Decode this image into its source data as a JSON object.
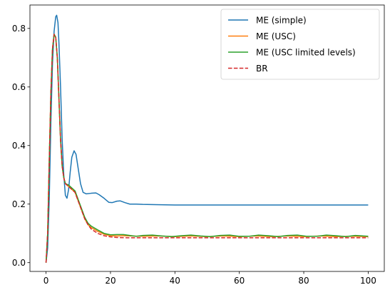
{
  "chart_data": {
    "type": "line",
    "title": "",
    "xlabel": "",
    "ylabel": "",
    "xlim": [
      -5,
      105
    ],
    "ylim": [
      -0.03,
      0.88
    ],
    "xticks": [
      0,
      20,
      40,
      60,
      80,
      100
    ],
    "xtick_labels": [
      "0",
      "20",
      "40",
      "60",
      "80",
      "100"
    ],
    "yticks": [
      0.0,
      0.2,
      0.4,
      0.6,
      0.8
    ],
    "ytick_labels": [
      "0.0",
      "0.2",
      "0.4",
      "0.6",
      "0.8"
    ],
    "grid": false,
    "legend_position": "top-right",
    "series": [
      {
        "name": "ME (simple)",
        "color": "#1f77b4",
        "dash": "solid",
        "points": [
          [
            0,
            0.0
          ],
          [
            0.5,
            0.05
          ],
          [
            1,
            0.22
          ],
          [
            1.5,
            0.48
          ],
          [
            2,
            0.68
          ],
          [
            2.5,
            0.79
          ],
          [
            3,
            0.84
          ],
          [
            3.3,
            0.845
          ],
          [
            3.7,
            0.82
          ],
          [
            4,
            0.75
          ],
          [
            4.5,
            0.6
          ],
          [
            5,
            0.42
          ],
          [
            5.5,
            0.3
          ],
          [
            6,
            0.23
          ],
          [
            6.5,
            0.22
          ],
          [
            7,
            0.25
          ],
          [
            7.5,
            0.31
          ],
          [
            8,
            0.36
          ],
          [
            8.7,
            0.382
          ],
          [
            9.3,
            0.37
          ],
          [
            10,
            0.32
          ],
          [
            10.7,
            0.27
          ],
          [
            11.5,
            0.24
          ],
          [
            12.5,
            0.235
          ],
          [
            14,
            0.237
          ],
          [
            15.5,
            0.238
          ],
          [
            16.5,
            0.232
          ],
          [
            18,
            0.22
          ],
          [
            19.5,
            0.206
          ],
          [
            20.5,
            0.205
          ],
          [
            22,
            0.21
          ],
          [
            23,
            0.211
          ],
          [
            24.5,
            0.205
          ],
          [
            26,
            0.2
          ],
          [
            28,
            0.2
          ],
          [
            30,
            0.199
          ],
          [
            34,
            0.198
          ],
          [
            40,
            0.197
          ],
          [
            60,
            0.197
          ],
          [
            80,
            0.197
          ],
          [
            100,
            0.197
          ]
        ]
      },
      {
        "name": "ME (USC)",
        "color": "#ff7f0e",
        "dash": "solid",
        "points": [
          [
            0,
            0.0
          ],
          [
            0.5,
            0.1
          ],
          [
            1,
            0.35
          ],
          [
            1.5,
            0.58
          ],
          [
            2,
            0.73
          ],
          [
            2.5,
            0.78
          ],
          [
            3,
            0.77
          ],
          [
            3.5,
            0.7
          ],
          [
            4,
            0.56
          ],
          [
            4.5,
            0.42
          ],
          [
            5,
            0.33
          ],
          [
            5.5,
            0.29
          ],
          [
            6,
            0.27
          ],
          [
            7,
            0.26
          ],
          [
            8,
            0.25
          ],
          [
            9,
            0.24
          ],
          [
            10,
            0.21
          ],
          [
            11,
            0.18
          ],
          [
            12,
            0.15
          ],
          [
            13,
            0.13
          ],
          [
            14,
            0.12
          ],
          [
            16,
            0.107
          ],
          [
            18,
            0.097
          ],
          [
            20,
            0.092
          ],
          [
            22,
            0.091
          ],
          [
            24,
            0.092
          ],
          [
            26,
            0.091
          ],
          [
            30,
            0.09
          ],
          [
            35,
            0.091
          ],
          [
            40,
            0.089
          ],
          [
            45,
            0.091
          ],
          [
            50,
            0.089
          ],
          [
            55,
            0.091
          ],
          [
            60,
            0.089
          ],
          [
            65,
            0.091
          ],
          [
            70,
            0.089
          ],
          [
            75,
            0.091
          ],
          [
            80,
            0.089
          ],
          [
            85,
            0.091
          ],
          [
            90,
            0.089
          ],
          [
            95,
            0.09
          ],
          [
            100,
            0.089
          ]
        ]
      },
      {
        "name": "ME (USC limited levels)",
        "color": "#2ca02c",
        "dash": "solid",
        "points": [
          [
            0,
            0.0
          ],
          [
            0.5,
            0.1
          ],
          [
            1,
            0.35
          ],
          [
            1.5,
            0.58
          ],
          [
            2,
            0.73
          ],
          [
            2.5,
            0.78
          ],
          [
            3,
            0.77
          ],
          [
            3.5,
            0.7
          ],
          [
            4,
            0.56
          ],
          [
            4.5,
            0.42
          ],
          [
            5,
            0.33
          ],
          [
            5.5,
            0.29
          ],
          [
            6,
            0.27
          ],
          [
            7,
            0.265
          ],
          [
            8,
            0.255
          ],
          [
            9,
            0.245
          ],
          [
            10,
            0.215
          ],
          [
            11,
            0.185
          ],
          [
            12,
            0.155
          ],
          [
            13,
            0.135
          ],
          [
            14,
            0.125
          ],
          [
            16,
            0.112
          ],
          [
            18,
            0.1
          ],
          [
            20,
            0.095
          ],
          [
            22,
            0.096
          ],
          [
            24,
            0.096
          ],
          [
            26,
            0.093
          ],
          [
            28,
            0.09
          ],
          [
            30,
            0.093
          ],
          [
            33,
            0.094
          ],
          [
            36,
            0.091
          ],
          [
            39,
            0.089
          ],
          [
            42,
            0.092
          ],
          [
            45,
            0.094
          ],
          [
            48,
            0.091
          ],
          [
            51,
            0.089
          ],
          [
            54,
            0.093
          ],
          [
            57,
            0.094
          ],
          [
            60,
            0.09
          ],
          [
            63,
            0.09
          ],
          [
            66,
            0.094
          ],
          [
            69,
            0.092
          ],
          [
            72,
            0.089
          ],
          [
            75,
            0.093
          ],
          [
            78,
            0.094
          ],
          [
            81,
            0.09
          ],
          [
            84,
            0.09
          ],
          [
            87,
            0.094
          ],
          [
            90,
            0.092
          ],
          [
            93,
            0.089
          ],
          [
            96,
            0.093
          ],
          [
            100,
            0.09
          ]
        ]
      },
      {
        "name": "BR",
        "color": "#d62728",
        "dash": "dashed",
        "points": [
          [
            0,
            0.0
          ],
          [
            0.5,
            0.1
          ],
          [
            1,
            0.35
          ],
          [
            1.5,
            0.58
          ],
          [
            2,
            0.73
          ],
          [
            2.5,
            0.78
          ],
          [
            3,
            0.77
          ],
          [
            3.5,
            0.7
          ],
          [
            4,
            0.56
          ],
          [
            4.5,
            0.42
          ],
          [
            5,
            0.33
          ],
          [
            5.5,
            0.29
          ],
          [
            6,
            0.27
          ],
          [
            7,
            0.26
          ],
          [
            8,
            0.25
          ],
          [
            9,
            0.24
          ],
          [
            10,
            0.21
          ],
          [
            11,
            0.18
          ],
          [
            12,
            0.15
          ],
          [
            13,
            0.13
          ],
          [
            14,
            0.115
          ],
          [
            16,
            0.1
          ],
          [
            18,
            0.092
          ],
          [
            20,
            0.088
          ],
          [
            22,
            0.086
          ],
          [
            25,
            0.085
          ],
          [
            30,
            0.085
          ],
          [
            40,
            0.085
          ],
          [
            60,
            0.085
          ],
          [
            80,
            0.085
          ],
          [
            100,
            0.085
          ]
        ]
      }
    ]
  }
}
